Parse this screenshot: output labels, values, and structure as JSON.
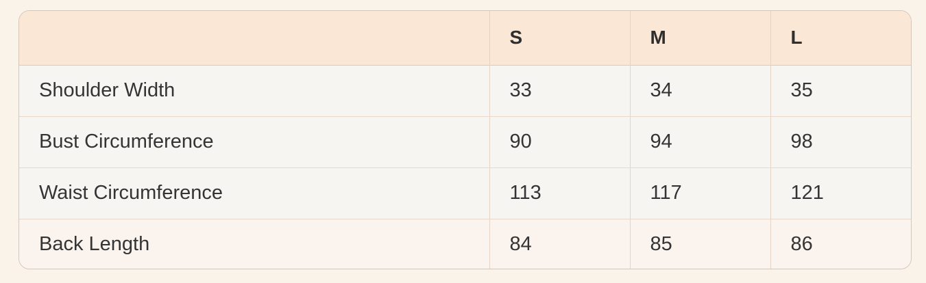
{
  "page": {
    "background_color": "#faf3ea"
  },
  "size_chart": {
    "columns": [
      "S",
      "M",
      "L"
    ],
    "rows": [
      {
        "label": "Shoulder Width",
        "values": [
          "33",
          "34",
          "35"
        ]
      },
      {
        "label": "Bust Circumference",
        "values": [
          "90",
          "94",
          "98"
        ]
      },
      {
        "label": "Waist Circumference",
        "values": [
          "113",
          "117",
          "121"
        ]
      },
      {
        "label": "Back Length",
        "values": [
          "84",
          "85",
          "86"
        ]
      }
    ],
    "colors": {
      "header_bg": "#fae7d5",
      "row_bg": "#f7f5f2",
      "last_row_bg": "#faf3ee",
      "grid_border": "#e6d4c6",
      "row_separator": "#e9d8ca",
      "outer_border": "#d9c5b4",
      "text": "#343434"
    }
  },
  "chart_data": {
    "type": "table",
    "title": "",
    "columns": [
      "",
      "S",
      "M",
      "L"
    ],
    "rows": [
      [
        "Shoulder Width",
        33,
        34,
        35
      ],
      [
        "Bust Circumference",
        90,
        94,
        98
      ],
      [
        "Waist Circumference",
        113,
        117,
        121
      ],
      [
        "Back Length",
        84,
        85,
        86
      ]
    ]
  }
}
